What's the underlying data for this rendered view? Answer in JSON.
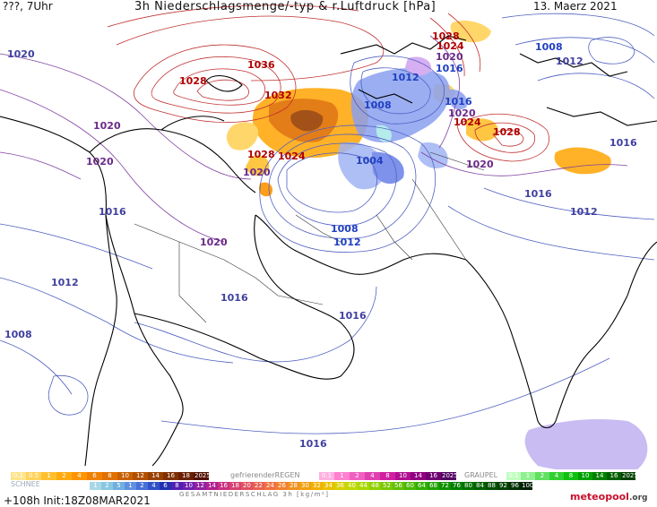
{
  "header": {
    "left": "???, 7Uhr",
    "title": "3h Niederschlagsmenge/-typ & r.Luftdruck [hPa]",
    "date": "13. Maerz 2021"
  },
  "isobar_labels": [
    {
      "text": "1020",
      "color": "#4040a0"
    },
    {
      "text": "1028",
      "color": "#b00000"
    },
    {
      "text": "1036",
      "color": "#b00000"
    },
    {
      "text": "1032",
      "color": "#b00000"
    },
    {
      "text": "1020",
      "color": "#6a2a8a"
    },
    {
      "text": "1020",
      "color": "#6a2a8a"
    },
    {
      "text": "1028",
      "color": "#b00000"
    },
    {
      "text": "1024",
      "color": "#b00000"
    },
    {
      "text": "1020",
      "color": "#6a2a8a"
    },
    {
      "text": "1016",
      "color": "#4040a0"
    },
    {
      "text": "1008",
      "color": "#2040c0"
    },
    {
      "text": "1004",
      "color": "#2040c0"
    },
    {
      "text": "1012",
      "color": "#2040c0"
    },
    {
      "text": "1008",
      "color": "#2040c0"
    },
    {
      "text": "1012",
      "color": "#2040c0"
    },
    {
      "text": "1020",
      "color": "#6a2a8a"
    },
    {
      "text": "1012",
      "color": "#4040a0"
    },
    {
      "text": "1016",
      "color": "#4040a0"
    },
    {
      "text": "1016",
      "color": "#4040a0"
    },
    {
      "text": "1008",
      "color": "#4040a0"
    },
    {
      "text": "1016",
      "color": "#4040a0"
    },
    {
      "text": "1028",
      "color": "#b00000"
    },
    {
      "text": "1024",
      "color": "#b00000"
    },
    {
      "text": "1020",
      "color": "#6a2a8a"
    },
    {
      "text": "1016",
      "color": "#2040c0"
    },
    {
      "text": "1008",
      "color": "#2040c0"
    },
    {
      "text": "1012",
      "color": "#4040a0"
    },
    {
      "text": "1016",
      "color": "#2040c0"
    },
    {
      "text": "1020",
      "color": "#6a2a8a"
    },
    {
      "text": "1024",
      "color": "#b00000"
    },
    {
      "text": "1028",
      "color": "#b00000"
    },
    {
      "text": "1020",
      "color": "#6a2a8a"
    },
    {
      "text": "1016",
      "color": "#4040a0"
    },
    {
      "text": "1012",
      "color": "#4040a0"
    },
    {
      "text": "1016",
      "color": "#4040a0"
    }
  ],
  "legend": {
    "rain_row": [
      "0.1",
      "0.5",
      "1",
      "2",
      "4",
      "6",
      "8",
      "10",
      "12",
      "14",
      "16",
      "18",
      "2025+"
    ],
    "rain_colors": [
      "#ffe48a",
      "#ffd25a",
      "#ffc030",
      "#ffaa10",
      "#ff9400",
      "#f08000",
      "#e07000",
      "#c86000",
      "#b05000",
      "#984000",
      "#803000",
      "#682000",
      "#501000"
    ],
    "freezing_label": "gefrierenderREGEN",
    "freezing_row": [
      "0.1",
      "1",
      "2",
      "4",
      "8",
      "10",
      "14",
      "16",
      "2025+"
    ],
    "freezing_colors": [
      "#ffb0e0",
      "#ff80d0",
      "#f060c0",
      "#e040b0",
      "#d020a0",
      "#b01090",
      "#900080",
      "#700070",
      "#500060"
    ],
    "graupel_label": "GRAUPEL",
    "graupel_row": [
      "0.1",
      "1",
      "2",
      "4",
      "8",
      "10",
      "14",
      "16",
      "2025+"
    ],
    "graupel_colors": [
      "#c0ffc0",
      "#90f090",
      "#60e060",
      "#30d030",
      "#10c010",
      "#00a000",
      "#008000",
      "#006000",
      "#004000"
    ],
    "snow_label": "SCHNEE",
    "total_row": [
      "1",
      "2",
      "5",
      "1",
      "2",
      "4",
      "6",
      "8",
      "10",
      "12",
      "14",
      "16",
      "18",
      "20",
      "22",
      "24",
      "26",
      "28",
      "30",
      "32",
      "34",
      "36",
      "40",
      "44",
      "48",
      "52",
      "56",
      "60",
      "64",
      "68",
      "72",
      "76",
      "80",
      "84",
      "88",
      "92",
      "96",
      "100"
    ],
    "total_label": "GESAMTNIEDERSCHLAG 3h [kg/m²]"
  },
  "run_info": "+108h Init:18Z08MAR2021",
  "brand": {
    "name": "meteopool",
    "suffix": ".org"
  }
}
